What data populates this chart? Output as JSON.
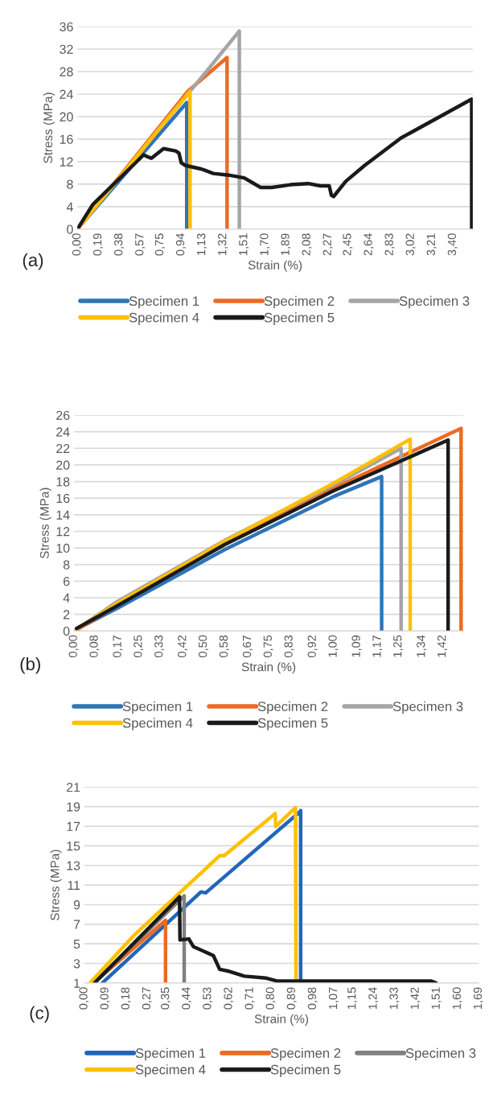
{
  "chart_data": [
    {
      "type": "line",
      "xlabel": "Strain (%)",
      "ylabel": "Stress (MPa)",
      "annotations": [
        "(a)"
      ],
      "grid": "y",
      "legend": "bottom",
      "line_style": "solid",
      "marker": "none",
      "xlim": [
        0,
        3.58
      ],
      "ylim": [
        0,
        36
      ],
      "yticks": [
        0,
        4,
        8,
        12,
        16,
        20,
        24,
        28,
        32,
        36
      ],
      "xticks": [
        {
          "value": 0,
          "label": "0,00"
        },
        {
          "value": 0.19,
          "label": "0,19"
        },
        {
          "value": 0.38,
          "label": "0,38"
        },
        {
          "value": 0.57,
          "label": "0,57"
        },
        {
          "value": 0.75,
          "label": "0,75"
        },
        {
          "value": 0.94,
          "label": "0,94"
        },
        {
          "value": 1.13,
          "label": "1,13"
        },
        {
          "value": 1.32,
          "label": "1,32"
        },
        {
          "value": 1.51,
          "label": "1,51"
        },
        {
          "value": 1.7,
          "label": "1,70"
        },
        {
          "value": 1.89,
          "label": "1,89"
        },
        {
          "value": 2.08,
          "label": "2,08"
        },
        {
          "value": 2.27,
          "label": "2,27"
        },
        {
          "value": 2.45,
          "label": "2,45"
        },
        {
          "value": 2.64,
          "label": "2,64"
        },
        {
          "value": 2.83,
          "label": "2,83"
        },
        {
          "value": 3.02,
          "label": "3,02"
        },
        {
          "value": 3.21,
          "label": "3,21"
        },
        {
          "value": 3.4,
          "label": "3,40"
        }
      ],
      "series": [
        {
          "name": "Specimen 1",
          "color": "#2e75b6",
          "x": [
            0,
            0.99,
            0.99
          ],
          "values": [
            0,
            22.5,
            0
          ]
        },
        {
          "name": "Specimen 2",
          "color": "#ed6a24",
          "x": [
            0,
            1.0,
            1.355,
            1.355
          ],
          "values": [
            0,
            24.5,
            30.5,
            0
          ]
        },
        {
          "name": "Specimen 3",
          "color": "#a5a5a5",
          "x": [
            0,
            1.466,
            1.466
          ],
          "values": [
            0,
            35.2,
            0
          ]
        },
        {
          "name": "Specimen 4",
          "color": "#ffc000",
          "x": [
            0,
            1.02,
            1.02
          ],
          "values": [
            0,
            24.5,
            0
          ]
        },
        {
          "name": "Specimen 5",
          "color": "#1a1a1a",
          "x": [
            0,
            0.14,
            0.6,
            0.63,
            0.67,
            0.78,
            0.89,
            0.92,
            0.94,
            0.98,
            1.12,
            1.23,
            1.37,
            1.51,
            1.59,
            1.66,
            1.76,
            1.93,
            2.09,
            2.2,
            2.28,
            2.3,
            2.32,
            2.43,
            2.6,
            2.93,
            3.57,
            3.57
          ],
          "values": [
            0,
            4.4,
            13.2,
            12.9,
            12.6,
            14.3,
            13.9,
            13.5,
            11.8,
            11.3,
            10.7,
            9.9,
            9.6,
            9.1,
            8.2,
            7.4,
            7.4,
            7.9,
            8.1,
            7.7,
            7.7,
            6.0,
            5.8,
            8.5,
            11.3,
            16.2,
            23.1,
            0
          ]
        }
      ]
    },
    {
      "type": "line",
      "xlabel": "Strain (%)",
      "ylabel": "Stress (MPa)",
      "annotations": [
        "(b)"
      ],
      "grid": "y",
      "legend": "bottom",
      "line_style": "solid",
      "marker": "none",
      "xlim": [
        0,
        1.5
      ],
      "ylim": [
        0,
        26
      ],
      "yticks": [
        0,
        2,
        4,
        6,
        8,
        10,
        12,
        14,
        16,
        18,
        20,
        22,
        24,
        26
      ],
      "xticks": [
        {
          "value": 0,
          "label": "0,00"
        },
        {
          "value": 0.08,
          "label": "0,08"
        },
        {
          "value": 0.17,
          "label": "0,17"
        },
        {
          "value": 0.25,
          "label": "0,25"
        },
        {
          "value": 0.33,
          "label": "0,33"
        },
        {
          "value": 0.42,
          "label": "0,42"
        },
        {
          "value": 0.5,
          "label": "0,50"
        },
        {
          "value": 0.58,
          "label": "0,58"
        },
        {
          "value": 0.67,
          "label": "0,67"
        },
        {
          "value": 0.75,
          "label": "0,75"
        },
        {
          "value": 0.83,
          "label": "0,83"
        },
        {
          "value": 0.92,
          "label": "0,92"
        },
        {
          "value": 1.0,
          "label": "1,00"
        },
        {
          "value": 1.09,
          "label": "1,09"
        },
        {
          "value": 1.17,
          "label": "1,17"
        },
        {
          "value": 1.25,
          "label": "1,25"
        },
        {
          "value": 1.34,
          "label": "1,34"
        },
        {
          "value": 1.42,
          "label": "1,42"
        }
      ],
      "series": [
        {
          "name": "Specimen 1",
          "color": "#2e75b6",
          "x": [
            0.01,
            0.17,
            0.58,
            1.0,
            1.185,
            1.185
          ],
          "values": [
            0.2,
            2.8,
            9.8,
            16.2,
            18.6,
            0
          ]
        },
        {
          "name": "Specimen 2",
          "color": "#ed6a24",
          "x": [
            0.01,
            0.17,
            0.58,
            1.0,
            1.491,
            1.491
          ],
          "values": [
            0.1,
            3.2,
            10.5,
            17.2,
            24.4,
            0
          ]
        },
        {
          "name": "Specimen 3",
          "color": "#a5a5a5",
          "x": [
            0.01,
            0.17,
            0.58,
            1.0,
            1.26,
            1.26
          ],
          "values": [
            0.2,
            3.6,
            10.9,
            17.6,
            22.0,
            0
          ]
        },
        {
          "name": "Specimen 4",
          "color": "#ffc000",
          "x": [
            0.01,
            0.17,
            0.58,
            1.0,
            1.295,
            1.295
          ],
          "values": [
            0.2,
            3.4,
            10.8,
            17.8,
            23.1,
            0
          ]
        },
        {
          "name": "Specimen 5",
          "color": "#1a1a1a",
          "x": [
            0.01,
            0.17,
            0.58,
            1.0,
            1.441,
            1.441
          ],
          "values": [
            0.3,
            3.1,
            10.4,
            16.9,
            23.0,
            0
          ]
        }
      ]
    },
    {
      "type": "line",
      "xlabel": "Strain (%)",
      "ylabel": "Stress (MPa)",
      "annotations": [
        "(c)"
      ],
      "grid": "y",
      "legend": "bottom",
      "line_style": "solid",
      "marker": "none",
      "xlim": [
        0,
        1.69
      ],
      "ylim": [
        1,
        21
      ],
      "yticks": [
        1,
        3,
        5,
        7,
        9,
        11,
        13,
        15,
        17,
        19,
        21
      ],
      "xticks": [
        {
          "value": 0,
          "label": "0,00"
        },
        {
          "value": 0.09,
          "label": "0,09"
        },
        {
          "value": 0.18,
          "label": "0,18"
        },
        {
          "value": 0.27,
          "label": "0,27"
        },
        {
          "value": 0.35,
          "label": "0,35"
        },
        {
          "value": 0.44,
          "label": "0,44"
        },
        {
          "value": 0.53,
          "label": "0,53"
        },
        {
          "value": 0.62,
          "label": "0,62"
        },
        {
          "value": 0.71,
          "label": "0,71"
        },
        {
          "value": 0.8,
          "label": "0,80"
        },
        {
          "value": 0.89,
          "label": "0,89"
        },
        {
          "value": 0.98,
          "label": "0,98"
        },
        {
          "value": 1.07,
          "label": "1,07"
        },
        {
          "value": 1.15,
          "label": "1,15"
        },
        {
          "value": 1.24,
          "label": "1,24"
        },
        {
          "value": 1.33,
          "label": "1,33"
        },
        {
          "value": 1.42,
          "label": "1,42"
        },
        {
          "value": 1.51,
          "label": "1,51"
        },
        {
          "value": 1.6,
          "label": "1,60"
        },
        {
          "value": 1.69,
          "label": "1,69"
        }
      ],
      "series": [
        {
          "name": "Specimen 1",
          "color": "#2266b8",
          "x": [
            0.077,
            0.5,
            0.52,
            0.925,
            0.927,
            0.927
          ],
          "values": [
            1,
            10.3,
            10.2,
            18.5,
            18.6,
            1
          ]
        },
        {
          "name": "Specimen 2",
          "color": "#ed6a24",
          "x": [
            0.04,
            0.348,
            0.348
          ],
          "values": [
            1,
            7.4,
            1
          ]
        },
        {
          "name": "Specimen 3",
          "color": "#808080",
          "x": [
            0.04,
            0.428,
            0.428
          ],
          "values": [
            1,
            9.9,
            1
          ]
        },
        {
          "name": "Specimen 4",
          "color": "#ffc000",
          "x": [
            0.024,
            0.21,
            0.58,
            0.6,
            0.818,
            0.82,
            0.905,
            0.907
          ],
          "values": [
            1,
            5.8,
            14.0,
            14.0,
            18.3,
            17.0,
            18.9,
            1
          ]
        },
        {
          "name": "Specimen 5",
          "color": "#1a1a1a",
          "x": [
            0.044,
            0.408,
            0.41,
            0.448,
            0.468,
            0.553,
            0.58,
            0.62,
            0.686,
            0.78,
            0.825,
            0.964,
            1.23,
            1.487,
            1.507
          ],
          "values": [
            1,
            9.8,
            5.4,
            5.5,
            4.7,
            3.8,
            2.4,
            2.2,
            1.7,
            1.5,
            1.2,
            1.2,
            1.2,
            1.2,
            1.0
          ]
        }
      ]
    }
  ]
}
